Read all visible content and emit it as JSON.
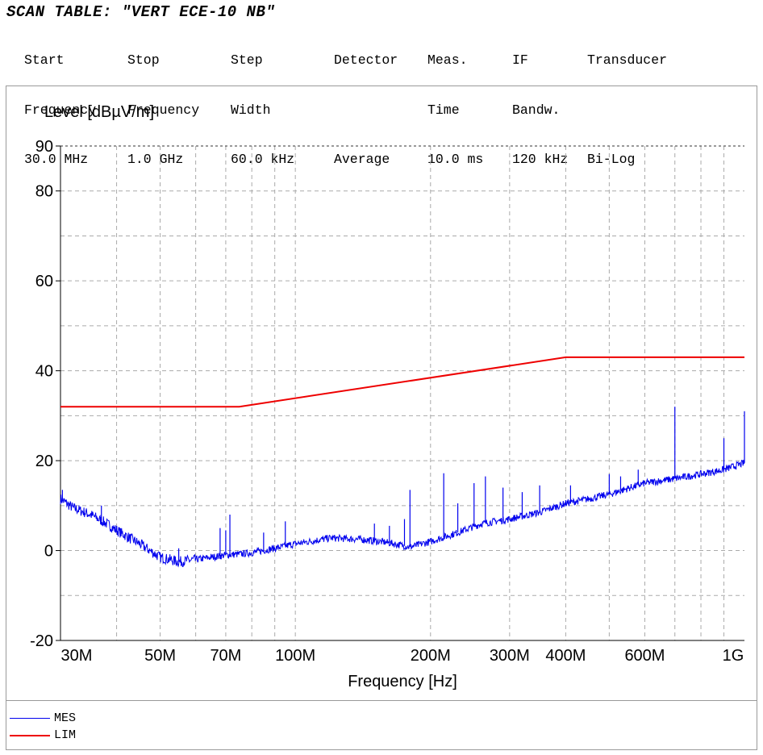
{
  "header": {
    "title": "SCAN TABLE: \"VERT ECE-10 NB\"",
    "columns": [
      [
        "Start",
        "Frequency",
        "30.0 MHz"
      ],
      [
        "Stop",
        "Frequency",
        "1.0 GHz"
      ],
      [
        "Step",
        "Width",
        "60.0 kHz"
      ],
      [
        "Detector",
        "",
        "Average"
      ],
      [
        "Meas.",
        "Time",
        "10.0 ms"
      ],
      [
        "IF",
        "Bandw.",
        "120 kHz"
      ],
      [
        "Transducer",
        "",
        "Bi-Log"
      ]
    ]
  },
  "chart_data": {
    "type": "line",
    "ylabel": "Level [dBµV/m]",
    "xlabel": "Frequency [Hz]",
    "x_scale": "log",
    "xlim": [
      30000000,
      1000000000
    ],
    "ylim": [
      -20,
      90
    ],
    "y_ticks": [
      -20,
      0,
      20,
      40,
      60,
      80,
      90
    ],
    "x_ticks": [
      {
        "value": 30000000,
        "label": "30M"
      },
      {
        "value": 50000000,
        "label": "50M"
      },
      {
        "value": 70000000,
        "label": "70M"
      },
      {
        "value": 100000000,
        "label": "100M"
      },
      {
        "value": 200000000,
        "label": "200M"
      },
      {
        "value": 300000000,
        "label": "300M"
      },
      {
        "value": 400000000,
        "label": "400M"
      },
      {
        "value": 600000000,
        "label": "600M"
      },
      {
        "value": 1000000000,
        "label": "1G"
      }
    ],
    "grid": true,
    "legend_position": "bottom-left",
    "series": [
      {
        "name": "MES",
        "color": "#0000ee",
        "x": [
          30000000,
          32000000,
          35000000,
          38000000,
          40000000,
          45000000,
          50000000,
          55000000,
          60000000,
          65000000,
          70000000,
          75000000,
          80000000,
          90000000,
          100000000,
          120000000,
          140000000,
          160000000,
          180000000,
          200000000,
          230000000,
          260000000,
          300000000,
          350000000,
          400000000,
          450000000,
          500000000,
          600000000,
          700000000,
          800000000,
          900000000,
          1000000000
        ],
        "y": [
          11.5,
          9.5,
          8,
          6,
          4.5,
          1.5,
          -1.5,
          -2.5,
          -2,
          -1.5,
          -1,
          -0.8,
          -0.5,
          0.5,
          1.5,
          2.8,
          2.5,
          1.8,
          0.8,
          2,
          4,
          6,
          7,
          8.5,
          10.5,
          11.5,
          12.5,
          15,
          16,
          17,
          18,
          19.5
        ],
        "spikes": [
          {
            "x": 30300000,
            "y": 13.5
          },
          {
            "x": 37000000,
            "y": 10
          },
          {
            "x": 40000000,
            "y": 5.5
          },
          {
            "x": 55000000,
            "y": 0.5
          },
          {
            "x": 68000000,
            "y": 5
          },
          {
            "x": 70000000,
            "y": 4.5
          },
          {
            "x": 71500000,
            "y": 8
          },
          {
            "x": 85000000,
            "y": 4
          },
          {
            "x": 95000000,
            "y": 6.5
          },
          {
            "x": 150000000,
            "y": 6
          },
          {
            "x": 162000000,
            "y": 5.5
          },
          {
            "x": 175000000,
            "y": 7
          },
          {
            "x": 180000000,
            "y": 13.5
          },
          {
            "x": 214000000,
            "y": 17.2
          },
          {
            "x": 230000000,
            "y": 10.5
          },
          {
            "x": 250000000,
            "y": 15
          },
          {
            "x": 265000000,
            "y": 16.5
          },
          {
            "x": 290000000,
            "y": 14
          },
          {
            "x": 320000000,
            "y": 13
          },
          {
            "x": 350000000,
            "y": 14.5
          },
          {
            "x": 410000000,
            "y": 14.5
          },
          {
            "x": 500000000,
            "y": 17
          },
          {
            "x": 530000000,
            "y": 16.5
          },
          {
            "x": 580000000,
            "y": 18
          },
          {
            "x": 700000000,
            "y": 32
          },
          {
            "x": 900000000,
            "y": 25
          },
          {
            "x": 1000000000,
            "y": 31
          }
        ]
      },
      {
        "name": "LIM",
        "color": "#ee0000",
        "x": [
          30000000,
          75000000,
          400000000,
          1000000000
        ],
        "y": [
          32,
          32,
          43,
          43
        ]
      }
    ]
  }
}
